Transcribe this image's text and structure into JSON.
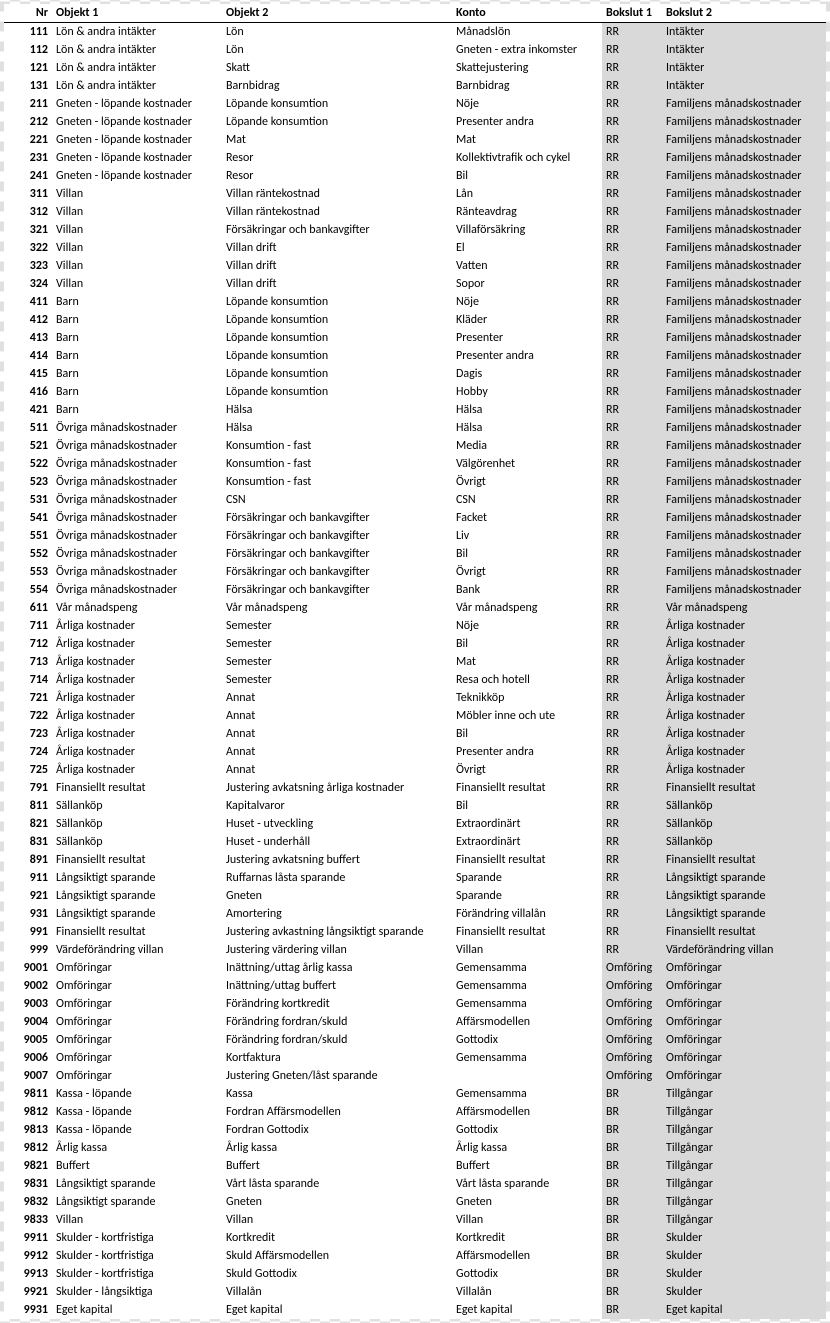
{
  "columns": [
    "Nr",
    "Objekt 1",
    "Objekt 2",
    "Konto",
    "Bokslut 1",
    "Bokslut 2"
  ],
  "shaded_cols": [
    4,
    5
  ],
  "rows": [
    [
      "111",
      "Lön & andra intäkter",
      "Lön",
      "Månadslön",
      "RR",
      "Intäkter"
    ],
    [
      "112",
      "Lön & andra intäkter",
      "Lön",
      "Gneten - extra inkomster",
      "RR",
      "Intäkter"
    ],
    [
      "121",
      "Lön & andra intäkter",
      "Skatt",
      "Skattejustering",
      "RR",
      "Intäkter"
    ],
    [
      "131",
      "Lön & andra intäkter",
      "Barnbidrag",
      "Barnbidrag",
      "RR",
      "Intäkter"
    ],
    [
      "211",
      "Gneten - löpande kostnader",
      "Löpande konsumtion",
      "Nöje",
      "RR",
      "Familjens månadskostnader"
    ],
    [
      "212",
      "Gneten - löpande kostnader",
      "Löpande konsumtion",
      "Presenter andra",
      "RR",
      "Familjens månadskostnader"
    ],
    [
      "221",
      "Gneten - löpande kostnader",
      "Mat",
      "Mat",
      "RR",
      "Familjens månadskostnader"
    ],
    [
      "231",
      "Gneten - löpande kostnader",
      "Resor",
      "Kollektivtrafik och cykel",
      "RR",
      "Familjens månadskostnader"
    ],
    [
      "241",
      "Gneten - löpande kostnader",
      "Resor",
      "Bil",
      "RR",
      "Familjens månadskostnader"
    ],
    [
      "311",
      "Villan",
      "Villan räntekostnad",
      "Lån",
      "RR",
      "Familjens månadskostnader"
    ],
    [
      "312",
      "Villan",
      "Villan räntekostnad",
      "Ränteavdrag",
      "RR",
      "Familjens månadskostnader"
    ],
    [
      "321",
      "Villan",
      "Försäkringar och bankavgifter",
      "Villaförsäkring",
      "RR",
      "Familjens månadskostnader"
    ],
    [
      "322",
      "Villan",
      "Villan drift",
      "El",
      "RR",
      "Familjens månadskostnader"
    ],
    [
      "323",
      "Villan",
      "Villan drift",
      "Vatten",
      "RR",
      "Familjens månadskostnader"
    ],
    [
      "324",
      "Villan",
      "Villan drift",
      "Sopor",
      "RR",
      "Familjens månadskostnader"
    ],
    [
      "411",
      "Barn",
      "Löpande konsumtion",
      "Nöje",
      "RR",
      "Familjens månadskostnader"
    ],
    [
      "412",
      "Barn",
      "Löpande konsumtion",
      "Kläder",
      "RR",
      "Familjens månadskostnader"
    ],
    [
      "413",
      "Barn",
      "Löpande konsumtion",
      "Presenter",
      "RR",
      "Familjens månadskostnader"
    ],
    [
      "414",
      "Barn",
      "Löpande konsumtion",
      "Presenter andra",
      "RR",
      "Familjens månadskostnader"
    ],
    [
      "415",
      "Barn",
      "Löpande konsumtion",
      "Dagis",
      "RR",
      "Familjens månadskostnader"
    ],
    [
      "416",
      "Barn",
      "Löpande konsumtion",
      "Hobby",
      "RR",
      "Familjens månadskostnader"
    ],
    [
      "421",
      "Barn",
      "Hälsa",
      "Hälsa",
      "RR",
      "Familjens månadskostnader"
    ],
    [
      "511",
      "Övriga månadskostnader",
      "Hälsa",
      "Hälsa",
      "RR",
      "Familjens månadskostnader"
    ],
    [
      "521",
      "Övriga månadskostnader",
      "Konsumtion - fast",
      "Media",
      "RR",
      "Familjens månadskostnader"
    ],
    [
      "522",
      "Övriga månadskostnader",
      "Konsumtion - fast",
      "Välgörenhet",
      "RR",
      "Familjens månadskostnader"
    ],
    [
      "523",
      "Övriga månadskostnader",
      "Konsumtion - fast",
      "Övrigt",
      "RR",
      "Familjens månadskostnader"
    ],
    [
      "531",
      "Övriga månadskostnader",
      "CSN",
      "CSN",
      "RR",
      "Familjens månadskostnader"
    ],
    [
      "541",
      "Övriga månadskostnader",
      "Försäkringar och bankavgifter",
      "Facket",
      "RR",
      "Familjens månadskostnader"
    ],
    [
      "551",
      "Övriga månadskostnader",
      "Försäkringar och bankavgifter",
      "Liv",
      "RR",
      "Familjens månadskostnader"
    ],
    [
      "552",
      "Övriga månadskostnader",
      "Försäkringar och bankavgifter",
      "Bil",
      "RR",
      "Familjens månadskostnader"
    ],
    [
      "553",
      "Övriga månadskostnader",
      "Försäkringar och bankavgifter",
      "Övrigt",
      "RR",
      "Familjens månadskostnader"
    ],
    [
      "554",
      "Övriga månadskostnader",
      "Försäkringar och bankavgifter",
      "Bank",
      "RR",
      "Familjens månadskostnader"
    ],
    [
      "611",
      "Vår månadspeng",
      "Vår månadspeng",
      "Vår månadspeng",
      "RR",
      "Vår månadspeng"
    ],
    [
      "711",
      "Årliga kostnader",
      "Semester",
      "Nöje",
      "RR",
      "Årliga kostnader"
    ],
    [
      "712",
      "Årliga kostnader",
      "Semester",
      "Bil",
      "RR",
      "Årliga kostnader"
    ],
    [
      "713",
      "Årliga kostnader",
      "Semester",
      "Mat",
      "RR",
      "Årliga kostnader"
    ],
    [
      "714",
      "Årliga kostnader",
      "Semester",
      "Resa och hotell",
      "RR",
      "Årliga kostnader"
    ],
    [
      "721",
      "Årliga kostnader",
      "Annat",
      "Teknikköp",
      "RR",
      "Årliga kostnader"
    ],
    [
      "722",
      "Årliga kostnader",
      "Annat",
      "Möbler inne och ute",
      "RR",
      "Årliga kostnader"
    ],
    [
      "723",
      "Årliga kostnader",
      "Annat",
      "Bil",
      "RR",
      "Årliga kostnader"
    ],
    [
      "724",
      "Årliga kostnader",
      "Annat",
      "Presenter andra",
      "RR",
      "Årliga kostnader"
    ],
    [
      "725",
      "Årliga kostnader",
      "Annat",
      "Övrigt",
      "RR",
      "Årliga kostnader"
    ],
    [
      "791",
      "Finansiellt resultat",
      "Justering avkatsning årliga kostnader",
      "Finansiellt resultat",
      "RR",
      "Finansiellt resultat"
    ],
    [
      "811",
      "Sällanköp",
      "Kapitalvaror",
      "Bil",
      "RR",
      "Sällanköp"
    ],
    [
      "821",
      "Sällanköp",
      "Huset - utveckling",
      "Extraordinärt",
      "RR",
      "Sällanköp"
    ],
    [
      "831",
      "Sällanköp",
      "Huset - underhåll",
      "Extraordinärt",
      "RR",
      "Sällanköp"
    ],
    [
      "891",
      "Finansiellt resultat",
      "Justering avkatsning buffert",
      "Finansiellt resultat",
      "RR",
      "Finansiellt resultat"
    ],
    [
      "911",
      "Långsiktigt sparande",
      "Ruffarnas låsta sparande",
      "Sparande",
      "RR",
      "Långsiktigt sparande"
    ],
    [
      "921",
      "Långsiktigt sparande",
      "Gneten",
      "Sparande",
      "RR",
      "Långsiktigt sparande"
    ],
    [
      "931",
      "Långsiktigt sparande",
      "Amortering",
      "Förändring villalån",
      "RR",
      "Långsiktigt sparande"
    ],
    [
      "991",
      "Finansiellt resultat",
      "Justering avkastning långsiktigt sparande",
      "Finansiellt resultat",
      "RR",
      "Finansiellt resultat"
    ],
    [
      "999",
      "Värdeförändring villan",
      "Justering värdering villan",
      "Villan",
      "RR",
      "Värdeförändring villan"
    ],
    [
      "9001",
      "Omföringar",
      "Inättning/uttag årlig kassa",
      "Gemensamma",
      "Omföring",
      "Omföringar"
    ],
    [
      "9002",
      "Omföringar",
      "Inättning/uttag buffert",
      "Gemensamma",
      "Omföring",
      "Omföringar"
    ],
    [
      "9003",
      "Omföringar",
      "Förändring kortkredit",
      "Gemensamma",
      "Omföring",
      "Omföringar"
    ],
    [
      "9004",
      "Omföringar",
      "Förändring fordran/skuld",
      "Affärsmodellen",
      "Omföring",
      "Omföringar"
    ],
    [
      "9005",
      "Omföringar",
      "Förändring fordran/skuld",
      "Gottodix",
      "Omföring",
      "Omföringar"
    ],
    [
      "9006",
      "Omföringar",
      "Kortfaktura",
      "Gemensamma",
      "Omföring",
      "Omföringar"
    ],
    [
      "9007",
      "Omföringar",
      "Justering Gneten/låst sparande",
      "",
      "Omföring",
      "Omföringar"
    ],
    [
      "9811",
      "Kassa - löpande",
      "Kassa",
      "Gemensamma",
      "BR",
      "Tillgångar"
    ],
    [
      "9812",
      "Kassa - löpande",
      "Fordran Affärsmodellen",
      "Affärsmodellen",
      "BR",
      "Tillgångar"
    ],
    [
      "9813",
      "Kassa - löpande",
      "Fordran Gottodix",
      "Gottodix",
      "BR",
      "Tillgångar"
    ],
    [
      "9812",
      "Årlig kassa",
      "Årlig kassa",
      "Årlig kassa",
      "BR",
      "Tillgångar"
    ],
    [
      "9821",
      "Buffert",
      "Buffert",
      "Buffert",
      "BR",
      "Tillgångar"
    ],
    [
      "9831",
      "Långsiktigt sparande",
      "Vårt låsta sparande",
      "Vårt låsta sparande",
      "BR",
      "Tillgångar"
    ],
    [
      "9832",
      "Långsiktigt sparande",
      "Gneten",
      "Gneten",
      "BR",
      "Tillgångar"
    ],
    [
      "9833",
      "Villan",
      "Villan",
      "Villan",
      "BR",
      "Tillgångar"
    ],
    [
      "9911",
      "Skulder - kortfristiga",
      "Kortkredit",
      "Kortkredit",
      "BR",
      "Skulder"
    ],
    [
      "9912",
      "Skulder - kortfristiga",
      "Skuld Affärsmodellen",
      "Affärsmodellen",
      "BR",
      "Skulder"
    ],
    [
      "9913",
      "Skulder - kortfristiga",
      "Skuld Gottodix",
      "Gottodix",
      "BR",
      "Skulder"
    ],
    [
      "9921",
      "Skulder - långsiktiga",
      "Villalån",
      "Villalån",
      "BR",
      "Skulder"
    ],
    [
      "9931",
      "Eget kapital",
      "Eget kapital",
      "Eget kapital",
      "BR",
      "Eget kapital"
    ]
  ]
}
